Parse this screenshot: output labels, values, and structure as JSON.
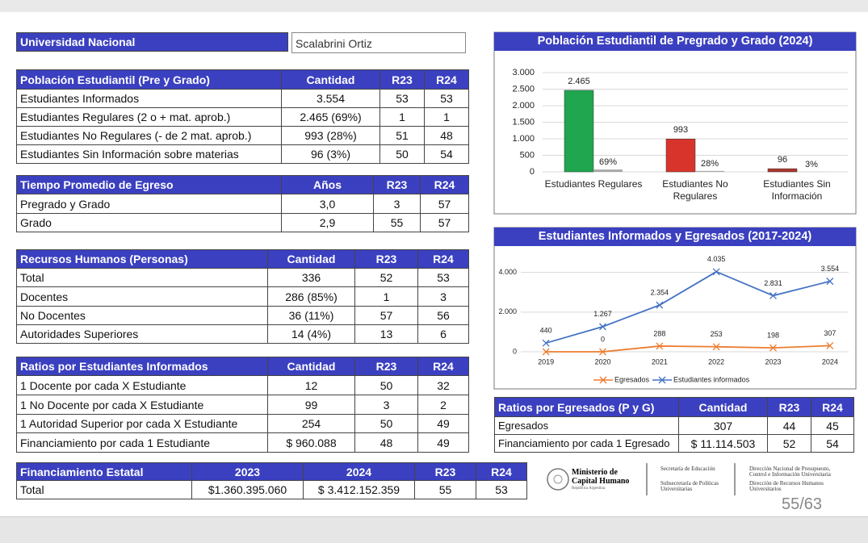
{
  "header": {
    "title": "Universidad Nacional",
    "selector": "Scalabrini Ortiz"
  },
  "tables": [
    {
      "header": [
        "Población Estudiantil (Pre y Grado)",
        "Cantidad",
        "R23",
        "R24"
      ],
      "rows": [
        [
          "Estudiantes Informados",
          "3.554",
          "53",
          "53"
        ],
        [
          "Estudiantes Regulares (2 o + mat. aprob.)",
          "2.465  (69%)",
          "1",
          "1"
        ],
        [
          "Estudiantes No Regulares (- de 2 mat. aprob.)",
          "993  (28%)",
          "51",
          "48"
        ],
        [
          "Estudiantes Sin Información sobre materias",
          "96   (3%)",
          "50",
          "54"
        ]
      ]
    },
    {
      "header": [
        "Tiempo Promedio de Egreso",
        "Años",
        "R23",
        "R24"
      ],
      "rows": [
        [
          "Pregrado y Grado",
          "3,0",
          "3",
          "57"
        ],
        [
          "Grado",
          "2,9",
          "55",
          "57"
        ]
      ]
    },
    {
      "header": [
        "Recursos Humanos (Personas)",
        "Cantidad",
        "R23",
        "R24"
      ],
      "rows": [
        [
          "Total",
          "336",
          "52",
          "53"
        ],
        [
          "Docentes",
          "286  (85%)",
          "1",
          "3"
        ],
        [
          "No Docentes",
          "36  (11%)",
          "57",
          "56"
        ],
        [
          "Autoridades Superiores",
          "14  (4%)",
          "13",
          "6"
        ]
      ]
    },
    {
      "header": [
        "Ratios por Estudiantes Informados",
        "Cantidad",
        "R23",
        "R24"
      ],
      "rows": [
        [
          "1 Docente por cada X Estudiante",
          "12",
          "50",
          "32"
        ],
        [
          "1 No Docente por cada X Estudiante",
          "99",
          "3",
          "2"
        ],
        [
          "1 Autoridad Superior por cada X Estudiante",
          "254",
          "50",
          "49"
        ],
        [
          "Financiamiento por cada 1 Estudiante",
          "$ 960.088",
          "48",
          "49"
        ]
      ]
    },
    {
      "header": [
        "Financiamiento Estatal",
        "2023",
        "2024",
        "R23",
        "R24"
      ],
      "rows": [
        [
          "Total",
          "$1.360.395.060",
          "$ 3.412.152.359",
          "55",
          "53"
        ]
      ]
    },
    {
      "header": [
        "Ratios por Egresados (P y G)",
        "Cantidad",
        "R23",
        "R24"
      ],
      "rows": [
        [
          "Egresados",
          "307",
          "44",
          "45"
        ],
        [
          "Financiamiento por cada 1 Egresado",
          "$ 11.114.503",
          "52",
          "54"
        ]
      ]
    }
  ],
  "chart_data": [
    {
      "type": "bar",
      "title": "Población Estudiantil de Pregrado y Grado (2024)",
      "categories": [
        "Estudiantes Regulares",
        "Estudiantes No Regulares",
        "Estudiantes Sin Información"
      ],
      "series": [
        {
          "values": [
            2465,
            993,
            96
          ],
          "value_labels": [
            "2.465",
            "993",
            "96"
          ],
          "colors": [
            "#1fa64f",
            "#d9342b",
            "#b0352c"
          ]
        },
        {
          "values": [
            69,
            28,
            3
          ],
          "value_labels": [
            "69%",
            "28%",
            "3%"
          ],
          "color": "#a6a6a6"
        }
      ],
      "ylim": [
        0,
        3000
      ],
      "yticks": [
        0,
        500,
        {
          "value": 1000,
          "label": "1.000"
        },
        {
          "value": 1500,
          "label": "1.500"
        },
        {
          "value": 2000,
          "label": "2.000"
        },
        {
          "value": 2500,
          "label": "2.500"
        },
        {
          "value": 3000,
          "label": "3.000"
        }
      ],
      "grid": true
    },
    {
      "type": "line",
      "title": "Estudiantes Informados y Egresados (2017-2024)",
      "categories": [
        "2019",
        "2020",
        "2021",
        "2022",
        "2023",
        "2024"
      ],
      "series": [
        {
          "name": "Egresados",
          "color": "#ed7d31",
          "values": [
            0,
            0,
            288,
            253,
            198,
            307
          ],
          "value_labels": [
            null,
            "0",
            "288",
            "253",
            "198",
            "307"
          ]
        },
        {
          "name": "Estudiantes informados",
          "color": "#4472c4",
          "values": [
            440,
            1267,
            2354,
            4035,
            2831,
            3554
          ],
          "value_labels": [
            "440",
            "1.267",
            "2.354",
            "4.035",
            "2.831",
            "3.554"
          ]
        }
      ],
      "ylim": [
        0,
        4800
      ],
      "yticks": [
        0,
        {
          "value": 2000,
          "label": "2.000"
        },
        {
          "value": 4000,
          "label": "4.000"
        }
      ],
      "grid": true,
      "legend": "bottom"
    }
  ],
  "footer": {
    "ministry": "Ministerio de Capital Humano",
    "country": "República Argentina",
    "secretariat": "Secretaría de Educación",
    "subsecretariat": "Subsecretaría de Políticas Universitarias",
    "direction_budget": "Dirección Nacional de Presupuesto, Control e Información Universitaria",
    "direction_hr": "Dirección de Recursos Humanos Universitarios",
    "page": "55/63"
  }
}
